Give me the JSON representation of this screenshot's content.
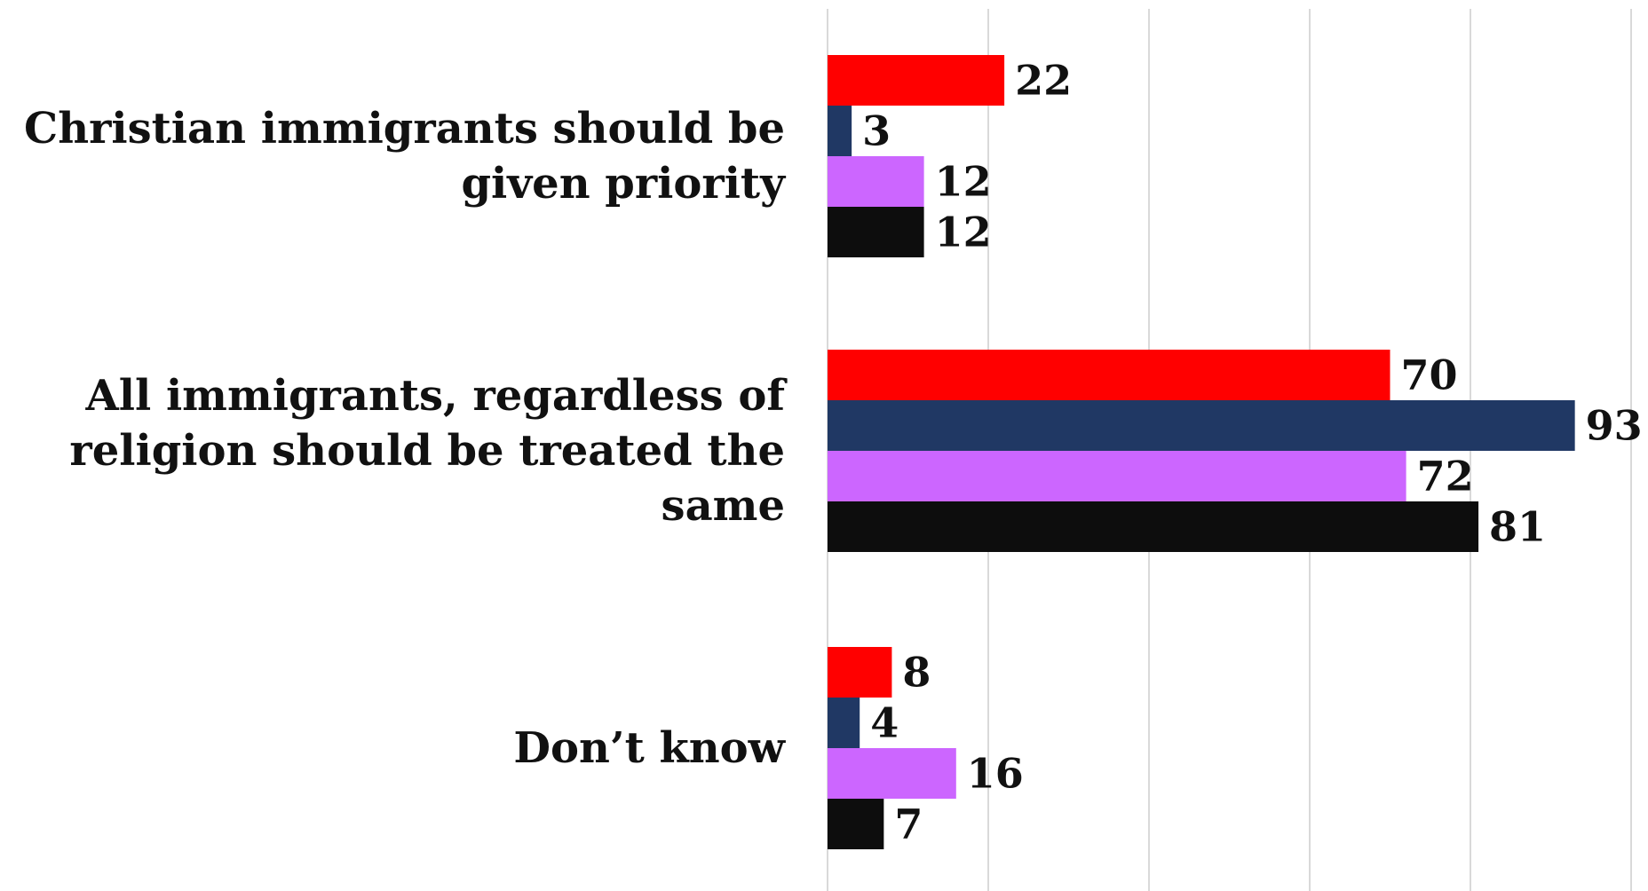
{
  "chart_data": {
    "type": "bar",
    "orientation": "horizontal",
    "categories": [
      "Christian immigrants should be given priority",
      "All immigrants, regardless of religion should be treated the same",
      "Don’t know"
    ],
    "category_lines": [
      [
        "Christian immigrants should be",
        "given priority"
      ],
      [
        "All immigrants, regardless of",
        "religion should be treated the",
        "same"
      ],
      [
        "Don’t know"
      ]
    ],
    "series": [
      {
        "color": "#ff0000",
        "values": [
          22,
          70,
          8
        ]
      },
      {
        "color": "#203864",
        "values": [
          3,
          93,
          4
        ]
      },
      {
        "color": "#cc66ff",
        "values": [
          12,
          72,
          16
        ]
      },
      {
        "color": "#0d0d0d",
        "values": [
          12,
          81,
          7
        ]
      }
    ],
    "xlim": [
      0,
      100
    ],
    "grid": true,
    "data_labels": true,
    "legend": "none"
  }
}
